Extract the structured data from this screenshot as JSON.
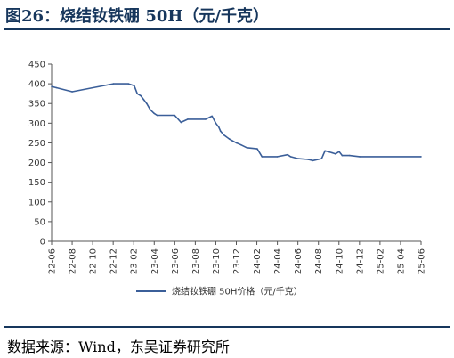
{
  "figure": {
    "title": "图26：烧结钕铁硼 50H（元/千克）",
    "source": "数据来源：Wind，东吴证券研究所"
  },
  "colors": {
    "line": "#3b5f99",
    "title": "#16365c"
  },
  "chart_data": {
    "type": "line",
    "title": "",
    "xlabel": "",
    "ylabel": "",
    "ylim": [
      0,
      450
    ],
    "yticks": [
      0,
      50,
      100,
      150,
      200,
      250,
      300,
      350,
      400,
      450
    ],
    "xlim": [
      "2022-06-01",
      "2025-06-01"
    ],
    "xtick_labels": [
      "22-06",
      "22-08",
      "22-10",
      "22-12",
      "23-02",
      "23-04",
      "23-06",
      "23-08",
      "23-10",
      "23-12",
      "24-02",
      "24-04",
      "24-06",
      "24-08",
      "24-10",
      "24-12",
      "25-02",
      "25-04",
      "25-06"
    ],
    "grid": false,
    "legend_position": "bottom-center",
    "series": [
      {
        "name": "烧结钕铁硼 50H价格（元/千克）",
        "x": [
          "2022-06-01",
          "2022-06-15",
          "2022-08-01",
          "2022-12-01",
          "2023-01-15",
          "2023-02-01",
          "2023-02-10",
          "2023-02-20",
          "2023-03-01",
          "2023-03-10",
          "2023-03-20",
          "2023-04-01",
          "2023-04-10",
          "2023-06-01",
          "2023-06-20",
          "2023-07-10",
          "2023-09-01",
          "2023-09-20",
          "2023-10-01",
          "2023-10-10",
          "2023-10-15",
          "2023-10-25",
          "2023-11-10",
          "2023-11-20",
          "2023-12-01",
          "2023-12-15",
          "2024-01-01",
          "2024-02-01",
          "2024-02-15",
          "2024-04-01",
          "2024-05-01",
          "2024-05-10",
          "2024-06-01",
          "2024-07-01",
          "2024-07-15",
          "2024-08-10",
          "2024-08-15",
          "2024-08-20",
          "2024-09-10",
          "2024-09-20",
          "2024-10-01",
          "2024-10-10",
          "2024-11-01",
          "2024-12-01",
          "2025-06-01"
        ],
        "y": [
          393,
          390,
          380,
          400,
          400,
          395,
          375,
          370,
          360,
          350,
          335,
          325,
          320,
          320,
          302,
          310,
          310,
          318,
          300,
          290,
          280,
          270,
          260,
          255,
          250,
          245,
          238,
          235,
          215,
          215,
          220,
          215,
          210,
          208,
          205,
          210,
          220,
          230,
          225,
          222,
          228,
          218,
          218,
          215,
          215
        ]
      }
    ]
  }
}
